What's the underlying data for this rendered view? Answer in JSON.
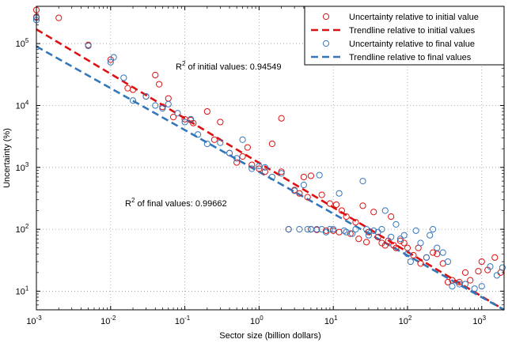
{
  "chart_data": {
    "type": "scatter",
    "x_scale": "log",
    "y_scale": "log",
    "xlim": [
      0.001,
      2000
    ],
    "ylim": [
      5,
      400000
    ],
    "grid": true,
    "xlabel": "Sector size (billion dollars)",
    "ylabel": "Uncertainty (%)",
    "legend_position": "top-right",
    "x_ticks": [
      {
        "base": "10",
        "exp": "-3",
        "value": 0.001
      },
      {
        "base": "10",
        "exp": "-2",
        "value": 0.01
      },
      {
        "base": "10",
        "exp": "-1",
        "value": 0.1
      },
      {
        "base": "10",
        "exp": "0",
        "value": 1
      },
      {
        "base": "10",
        "exp": "1",
        "value": 10
      },
      {
        "base": "10",
        "exp": "2",
        "value": 100
      },
      {
        "base": "10",
        "exp": "3",
        "value": 1000
      }
    ],
    "y_ticks": [
      {
        "base": "10",
        "exp": "1",
        "value": 10
      },
      {
        "base": "10",
        "exp": "2",
        "value": 100
      },
      {
        "base": "10",
        "exp": "3",
        "value": 1000
      },
      {
        "base": "10",
        "exp": "4",
        "value": 10000
      },
      {
        "base": "10",
        "exp": "5",
        "value": 100000
      }
    ],
    "annotations": {
      "initial_r2": {
        "prefix": "R",
        "sup": "2",
        "text": " of initial values: 0.94549"
      },
      "final_r2": {
        "prefix": "R",
        "sup": "2",
        "text": " of final values: 0.99662"
      }
    },
    "series": [
      {
        "name": "Uncertainty relative to initial value",
        "kind": "scatter",
        "color": "#dd1111",
        "points": [
          [
            0.001,
            350000
          ],
          [
            0.001,
            270000
          ],
          [
            0.002,
            260000
          ],
          [
            0.005,
            95000
          ],
          [
            0.01,
            55000
          ],
          [
            0.017,
            19000
          ],
          [
            0.02,
            18000
          ],
          [
            0.03,
            14000
          ],
          [
            0.04,
            31000
          ],
          [
            0.045,
            22000
          ],
          [
            0.05,
            9500
          ],
          [
            0.06,
            13000
          ],
          [
            0.07,
            6500
          ],
          [
            0.1,
            6000
          ],
          [
            0.12,
            5800
          ],
          [
            0.13,
            5200
          ],
          [
            0.2,
            8000
          ],
          [
            0.25,
            2800
          ],
          [
            0.3,
            5400
          ],
          [
            0.4,
            1700
          ],
          [
            0.5,
            1200
          ],
          [
            0.6,
            1500
          ],
          [
            0.7,
            2100
          ],
          [
            0.8,
            1100
          ],
          [
            1.0,
            950
          ],
          [
            1.2,
            850
          ],
          [
            1.5,
            2400
          ],
          [
            2.0,
            6200
          ],
          [
            2.0,
            850
          ],
          [
            2.5,
            100
          ],
          [
            3.0,
            430
          ],
          [
            3.5,
            380
          ],
          [
            4.0,
            700
          ],
          [
            4.5,
            330
          ],
          [
            5.0,
            100
          ],
          [
            5.0,
            730
          ],
          [
            6.0,
            98
          ],
          [
            7.0,
            360
          ],
          [
            8.0,
            95
          ],
          [
            9.0,
            260
          ],
          [
            10.0,
            95
          ],
          [
            11.0,
            250
          ],
          [
            12.0,
            90
          ],
          [
            13.0,
            200
          ],
          [
            15.0,
            160
          ],
          [
            17.0,
            85
          ],
          [
            20.0,
            130
          ],
          [
            22.0,
            70
          ],
          [
            25.0,
            240
          ],
          [
            28.0,
            62
          ],
          [
            30.0,
            90
          ],
          [
            35.0,
            190
          ],
          [
            40.0,
            75
          ],
          [
            45.0,
            60
          ],
          [
            50.0,
            55
          ],
          [
            55.0,
            65
          ],
          [
            60.0,
            160
          ],
          [
            65.0,
            55
          ],
          [
            70.0,
            50
          ],
          [
            80.0,
            65
          ],
          [
            90.0,
            60
          ],
          [
            100.0,
            50
          ],
          [
            120.0,
            38
          ],
          [
            140.0,
            50
          ],
          [
            150.0,
            28
          ],
          [
            180.0,
            35
          ],
          [
            220.0,
            42
          ],
          [
            250.0,
            40
          ],
          [
            300.0,
            28
          ],
          [
            350.0,
            14
          ],
          [
            400.0,
            15
          ],
          [
            500.0,
            14
          ],
          [
            600.0,
            20
          ],
          [
            700.0,
            15
          ],
          [
            900.0,
            21
          ],
          [
            1000.0,
            30
          ],
          [
            1200.0,
            22
          ],
          [
            1500.0,
            35
          ],
          [
            1800.0,
            20
          ]
        ]
      },
      {
        "name": "Trendline relative to initial values",
        "kind": "line",
        "color": "#dd1111",
        "dashed": true,
        "points": [
          [
            0.001,
            170000
          ],
          [
            2000,
            5
          ]
        ]
      },
      {
        "name": "Uncertainty relative to final value",
        "kind": "scatter",
        "color": "#3377bb",
        "points": [
          [
            0.001,
            260000
          ],
          [
            0.001,
            240000
          ],
          [
            0.005,
            92000
          ],
          [
            0.01,
            50000
          ],
          [
            0.011,
            60000
          ],
          [
            0.015,
            28000
          ],
          [
            0.02,
            12000
          ],
          [
            0.03,
            14000
          ],
          [
            0.04,
            10000
          ],
          [
            0.05,
            9000
          ],
          [
            0.06,
            10500
          ],
          [
            0.08,
            7500
          ],
          [
            0.1,
            5400
          ],
          [
            0.12,
            6000
          ],
          [
            0.15,
            3400
          ],
          [
            0.2,
            2400
          ],
          [
            0.3,
            2500
          ],
          [
            0.4,
            1700
          ],
          [
            0.5,
            1400
          ],
          [
            0.6,
            2800
          ],
          [
            0.8,
            950
          ],
          [
            1.0,
            1050
          ],
          [
            1.2,
            1000
          ],
          [
            1.5,
            700
          ],
          [
            2.0,
            800
          ],
          [
            2.5,
            100
          ],
          [
            3.0,
            420
          ],
          [
            3.5,
            100
          ],
          [
            4.0,
            520
          ],
          [
            4.5,
            100
          ],
          [
            5.0,
            100
          ],
          [
            6.0,
            100
          ],
          [
            6.5,
            750
          ],
          [
            7.0,
            100
          ],
          [
            8.0,
            90
          ],
          [
            9.0,
            100
          ],
          [
            10.0,
            100
          ],
          [
            12.0,
            380
          ],
          [
            14.0,
            95
          ],
          [
            15.0,
            90
          ],
          [
            18.0,
            85
          ],
          [
            20.0,
            100
          ],
          [
            25.0,
            600
          ],
          [
            28.0,
            100
          ],
          [
            30.0,
            80
          ],
          [
            35.0,
            95
          ],
          [
            40.0,
            90
          ],
          [
            45.0,
            100
          ],
          [
            50.0,
            200
          ],
          [
            60.0,
            75
          ],
          [
            70.0,
            120
          ],
          [
            80.0,
            70
          ],
          [
            90.0,
            80
          ],
          [
            100.0,
            40
          ],
          [
            110.0,
            30
          ],
          [
            130.0,
            95
          ],
          [
            150.0,
            60
          ],
          [
            180.0,
            35
          ],
          [
            200.0,
            80
          ],
          [
            220.0,
            100
          ],
          [
            250.0,
            50
          ],
          [
            300.0,
            42
          ],
          [
            350.0,
            30
          ],
          [
            400.0,
            12
          ],
          [
            500.0,
            13
          ],
          [
            600.0,
            13
          ],
          [
            800.0,
            11
          ],
          [
            1000.0,
            12
          ],
          [
            1300.0,
            25
          ],
          [
            1600.0,
            18
          ],
          [
            1900.0,
            24
          ]
        ]
      },
      {
        "name": "Trendline relative to final values",
        "kind": "line",
        "color": "#3377bb",
        "dashed": true,
        "points": [
          [
            0.001,
            90000
          ],
          [
            2000,
            5
          ]
        ]
      }
    ]
  }
}
